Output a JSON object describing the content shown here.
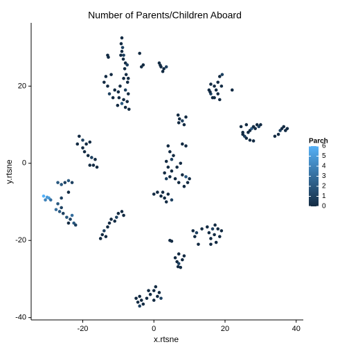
{
  "chart_data": {
    "type": "scatter",
    "title": "Number of Parents/Children Aboard",
    "x_label": "x.rtsne",
    "y_label": "y.rtsne",
    "xlim": [
      -34.5,
      42
    ],
    "ylim": [
      -40.6,
      36.4
    ],
    "xticks": [
      -20,
      0,
      20,
      40
    ],
    "yticks": [
      -40,
      -20,
      0,
      20
    ],
    "grid": false,
    "x": [
      -9,
      -9.2,
      -8.8,
      -9,
      -9.3,
      -8.6,
      -8,
      -7.5,
      -8.2,
      -7.8,
      -8.5,
      -7.4,
      -9.5,
      -8,
      -7.2,
      -9.8,
      -8.5,
      -7.5,
      -9,
      -8,
      -7,
      -10,
      -7.2,
      -8.5,
      -10.2,
      -14,
      -13,
      -12.5,
      -11.5,
      -13.5,
      -12,
      -11,
      -13,
      -12.8,
      -3.5,
      -3,
      -4,
      1.5,
      2,
      2.8,
      3.5,
      2.5,
      1.8,
      15.5,
      16,
      16.5,
      17,
      17.5,
      18,
      18.5,
      19,
      18,
      17,
      16,
      19.2,
      18.5,
      15.8,
      22,
      24.5,
      25,
      25.5,
      26,
      26.5,
      27,
      27.5,
      28,
      28.5,
      29,
      29.5,
      26,
      27,
      28,
      25,
      30,
      34,
      35,
      35.5,
      36.5,
      37,
      36,
      37.5,
      6.8,
      7.2,
      8,
      9,
      8.5,
      7,
      4,
      4.5,
      5,
      3.5,
      4,
      5,
      3,
      4.5,
      6,
      6.5,
      7.5,
      8,
      9,
      9.5,
      8.5,
      7,
      8,
      9,
      5.5,
      3.5,
      10,
      0,
      1,
      2,
      3,
      4,
      5,
      2.5,
      3.5,
      -21,
      -20,
      -19,
      -18,
      -21.5,
      -19.5,
      -18.5,
      -17.5,
      -17,
      -16,
      -18,
      -16.5,
      -20,
      -31,
      -30,
      -29.5,
      -30.5,
      -29,
      -27,
      -26,
      -25,
      -24,
      -23,
      -27,
      -26,
      -26.5,
      -25.5,
      -24.5,
      -23.5,
      -22.5,
      -23,
      -26,
      -24,
      -22,
      -27.5,
      -24,
      -15,
      -14.5,
      -14,
      -13,
      -12.5,
      -12,
      -11,
      -10,
      -9,
      -10.5,
      -13.5,
      -8.5,
      4.5,
      5,
      6,
      6.5,
      7,
      7.5,
      8,
      8.5,
      7,
      6.8,
      11,
      11.5,
      12.5,
      13.5,
      12,
      15,
      15.5,
      16,
      16.5,
      17,
      17.5,
      18,
      18.5,
      19,
      16,
      17.2,
      -5,
      -4.5,
      -4,
      -3.5,
      -3,
      -2,
      -1,
      0,
      0.5,
      1,
      1.5,
      2,
      -1.5,
      -4,
      0
    ],
    "values": [
      32.5,
      31,
      30,
      29,
      28,
      27,
      26,
      25.5,
      24.5,
      23,
      22,
      21,
      20,
      19,
      18,
      17,
      16.5,
      16,
      15.5,
      14.5,
      14,
      18.5,
      22,
      28,
      15,
      21,
      20,
      18,
      17,
      22.5,
      23,
      19,
      28,
      27.5,
      25,
      25.5,
      28.5,
      26,
      25,
      24.5,
      25,
      23.8,
      25.4,
      19,
      18,
      17,
      20,
      19,
      21,
      22.5,
      20,
      18,
      17,
      20.5,
      23,
      16.5,
      18.5,
      19,
      9.5,
      8,
      7,
      6.5,
      8,
      8.5,
      9,
      9.5,
      9,
      10,
      9.5,
      10,
      6,
      5.8,
      7.5,
      10,
      7,
      7.5,
      8.5,
      9.5,
      8.5,
      9,
      9,
      12.5,
      11.5,
      11,
      12,
      10,
      10.5,
      4.5,
      3,
      1,
      0.5,
      -1,
      -2,
      -2.5,
      -3.5,
      -4,
      -1,
      0,
      -3,
      -3.5,
      -5,
      -6,
      -5,
      5,
      4.5,
      2,
      -4,
      -4,
      -8,
      -7.5,
      -8.5,
      -9,
      -8,
      -9.5,
      -7.5,
      -10,
      7,
      6,
      5,
      5.5,
      5,
      3,
      2,
      1.5,
      -0.5,
      -1,
      -0.5,
      1,
      4,
      -8.5,
      -8.8,
      -9,
      -9.5,
      -9.5,
      -5,
      -5.5,
      -5,
      -4.5,
      -5,
      -10.5,
      -11.5,
      -12.5,
      -13,
      -14,
      -14.5,
      -15.5,
      -13.5,
      -9,
      -7.5,
      -16,
      -12,
      -15.5,
      -19.5,
      -18.5,
      -17.5,
      -16.5,
      -15.5,
      -14.5,
      -15,
      -13,
      -12.5,
      -14,
      -19,
      -13.5,
      -20,
      -20.2,
      -24.5,
      -25.5,
      -26,
      -27,
      -25,
      -24,
      -23.5,
      -26.8,
      -17.5,
      -19,
      -21,
      -17,
      -18,
      -16.5,
      -18,
      -19.5,
      -17,
      -18.5,
      -20.5,
      -17,
      -19,
      -17.5,
      -21,
      -16,
      -35,
      -36,
      -37,
      -35.5,
      -36.5,
      -35,
      -34,
      -33,
      -32,
      -34.5,
      -33.5,
      -35,
      -33,
      -34.5,
      -35.5
    ],
    "color_values": [
      0,
      0,
      1,
      0,
      0,
      0,
      0,
      1,
      0,
      0,
      0,
      0,
      0,
      1,
      0,
      0,
      0,
      0,
      2,
      0,
      0,
      0,
      0,
      1,
      0,
      0,
      0,
      1,
      0,
      0,
      0,
      0,
      0,
      0,
      0,
      0,
      0,
      0,
      0,
      0,
      1,
      0,
      0,
      0,
      1,
      0,
      0,
      0,
      0,
      0,
      0,
      0,
      0,
      0,
      1,
      0,
      0,
      0,
      0,
      0,
      1,
      0,
      0,
      0,
      2,
      0,
      0,
      0,
      1,
      0,
      0,
      0,
      0,
      0,
      0,
      0,
      1,
      0,
      0,
      0,
      0,
      0,
      0,
      1,
      0,
      0,
      0,
      0,
      0,
      1,
      0,
      0,
      0,
      0,
      0,
      0,
      0,
      0,
      0,
      2,
      0,
      0,
      0,
      0,
      0,
      0,
      1,
      0,
      0,
      0,
      0,
      0,
      0,
      1,
      0,
      0,
      0,
      1,
      0,
      0,
      0,
      0,
      0,
      1,
      0,
      0,
      0,
      0,
      0,
      6,
      5,
      5,
      4,
      3,
      2,
      2,
      1,
      2,
      1,
      2,
      1,
      2,
      1,
      2,
      1,
      2,
      3,
      1,
      0,
      1,
      3,
      0,
      0,
      0,
      1,
      0,
      0,
      0,
      0,
      0,
      0,
      1,
      0,
      0,
      0,
      0,
      0,
      0,
      1,
      0,
      0,
      0,
      0,
      0,
      0,
      0,
      0,
      0,
      1,
      0,
      0,
      0,
      1,
      0,
      0,
      0,
      0,
      0,
      0,
      0,
      0,
      0,
      1,
      0,
      0,
      0,
      0,
      0,
      0,
      0,
      0,
      1,
      0,
      0,
      0
    ],
    "color_scale": {
      "title": "Parch",
      "lim": [
        0,
        6
      ],
      "ticks": [
        0,
        1,
        2,
        3,
        4,
        5,
        6
      ],
      "low": "#132B43",
      "high": "#56B1F7"
    }
  }
}
